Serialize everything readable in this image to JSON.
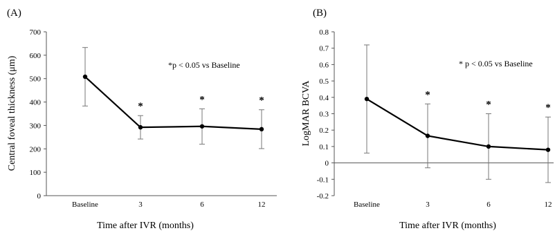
{
  "chart_data": [
    {
      "type": "line",
      "panel_label": "(A)",
      "categories": [
        "Baseline",
        "3",
        "6",
        "12"
      ],
      "values": [
        508,
        292,
        296,
        284
      ],
      "error_high": [
        633,
        342,
        371,
        367
      ],
      "error_low": [
        383,
        242,
        220,
        201
      ],
      "significant": [
        false,
        true,
        true,
        true
      ],
      "significance_marker": "*",
      "annotation": "*p < 0.05 vs Baseline",
      "xlabel": "Time after IVR (months)",
      "ylabel": "Central foveal thickness (μm)",
      "ylim": [
        0,
        700
      ],
      "yticks": [
        0,
        100,
        200,
        300,
        400,
        500,
        600,
        700
      ],
      "ytick_labels": [
        "0",
        "100",
        "200",
        "300",
        "400",
        "500",
        "600",
        "700"
      ],
      "grid": false,
      "legend": "none",
      "color": "#000000"
    },
    {
      "type": "line",
      "panel_label": "(B)",
      "categories": [
        "Baseline",
        "3",
        "6",
        "12"
      ],
      "values": [
        0.39,
        0.165,
        0.1,
        0.08
      ],
      "error_high": [
        0.72,
        0.36,
        0.3,
        0.28
      ],
      "error_low": [
        0.06,
        -0.03,
        -0.1,
        -0.12
      ],
      "significant": [
        false,
        true,
        true,
        true
      ],
      "significance_marker": "*",
      "annotation": "* p < 0.05 vs Baseline",
      "xlabel": "Time after IVR (months)",
      "ylabel": "LogMAR  BCVA",
      "ylim": [
        -0.2,
        0.8
      ],
      "yticks": [
        -0.2,
        -0.1,
        0,
        0.1,
        0.2,
        0.3,
        0.4,
        0.5,
        0.6,
        0.7,
        0.8
      ],
      "ytick_labels": [
        "-0.2",
        "-0.1",
        "0",
        "0.1",
        "0.2",
        "0.3",
        "0.4",
        "0.5",
        "0.6",
        "0.7",
        "0.8"
      ],
      "grid": false,
      "legend": "none",
      "color": "#000000"
    }
  ]
}
